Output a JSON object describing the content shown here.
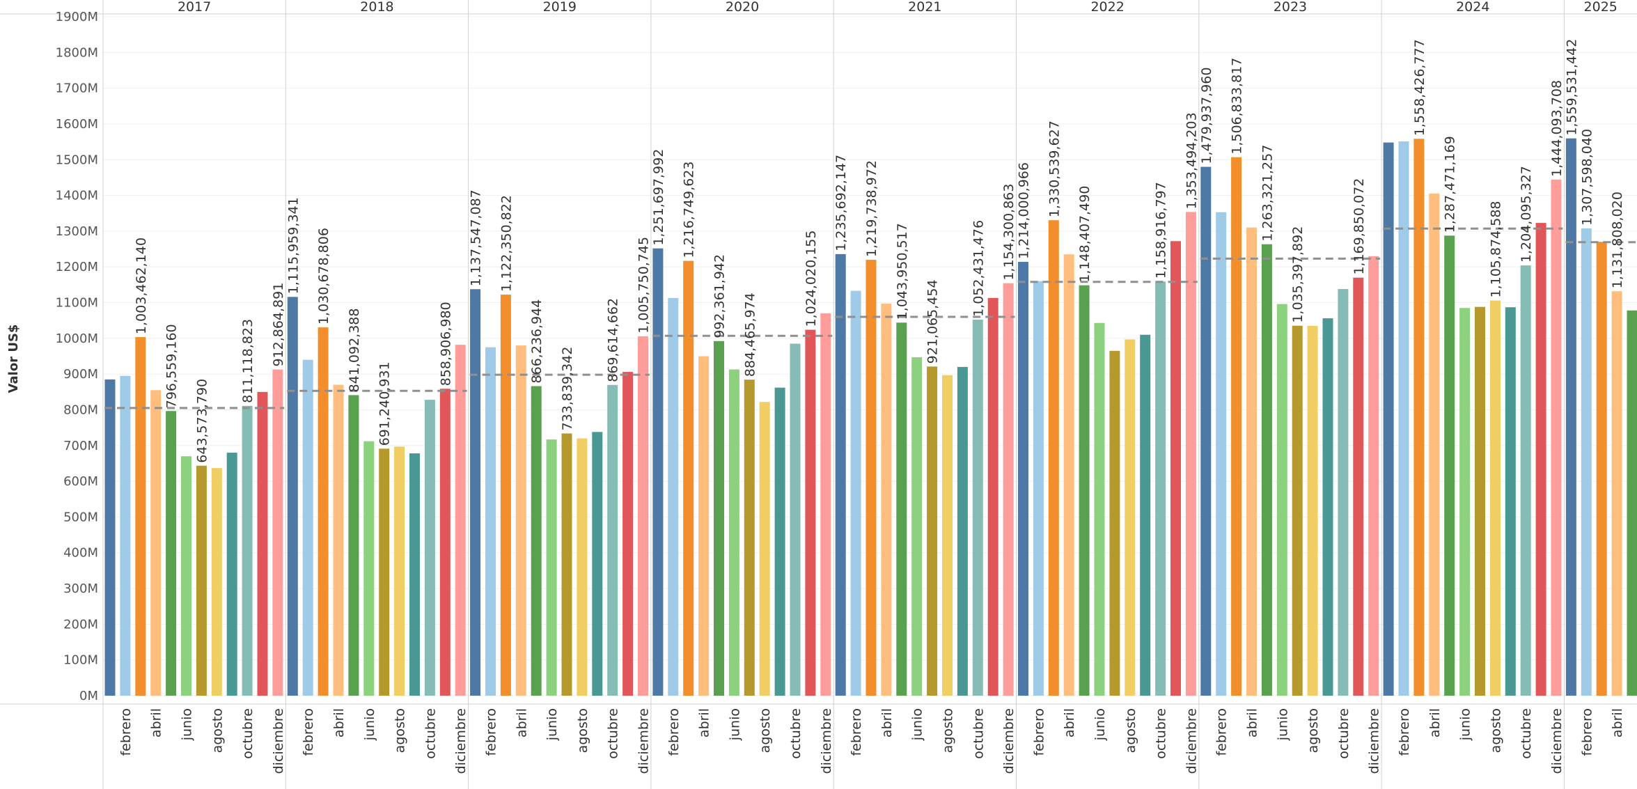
{
  "chart_data": {
    "type": "bar",
    "ylabel": "Valor US$",
    "ylim": [
      0,
      1900000000
    ],
    "yticks": [
      "0M",
      "100M",
      "200M",
      "300M",
      "400M",
      "500M",
      "600M",
      "700M",
      "800M",
      "900M",
      "1000M",
      "1100M",
      "1200M",
      "1300M",
      "1400M",
      "1500M",
      "1600M",
      "1700M",
      "1800M",
      "1900M"
    ],
    "month_labels": [
      "",
      "febrero",
      "",
      "abril",
      "",
      "junio",
      "",
      "agosto",
      "",
      "octubre",
      "",
      "diciembre"
    ],
    "colors": [
      "#4e79a7",
      "#a0cbe8",
      "#f28e2b",
      "#ffbe7d",
      "#59a14f",
      "#8cd17d",
      "#b6992d",
      "#f1ce63",
      "#499894",
      "#86bcb6",
      "#e15759",
      "#ff9d9a"
    ],
    "reference_line": "average per year (dashed)",
    "years": [
      {
        "year": "2017",
        "values": [
          885000000,
          895000000,
          1003462140,
          855000000,
          796559160,
          670000000,
          643573790,
          637000000,
          680000000,
          811118823,
          850000000,
          912864891
        ],
        "labels": [
          "",
          "",
          "1,003,462,140",
          "",
          "796,559,160",
          "",
          "643,573,790",
          "",
          "",
          "811,118,823",
          "",
          "912,864,891"
        ],
        "average": 805000000
      },
      {
        "year": "2018",
        "values": [
          1115959341,
          940000000,
          1030678806,
          870000000,
          841092388,
          712000000,
          691240931,
          697000000,
          678000000,
          828000000,
          858906980,
          982000000
        ],
        "labels": [
          "1,115,959,341",
          "",
          "1,030,678,806",
          "",
          "841,092,388",
          "",
          "691,240,931",
          "",
          "",
          "",
          "858,906,980",
          ""
        ],
        "average": 853000000
      },
      {
        "year": "2019",
        "values": [
          1137547087,
          975000000,
          1122350822,
          980000000,
          866236944,
          717000000,
          733839342,
          720000000,
          738000000,
          869614662,
          906000000,
          1005750745
        ],
        "labels": [
          "1,137,547,087",
          "",
          "1,122,350,822",
          "",
          "866,236,944",
          "",
          "733,839,342",
          "",
          "",
          "869,614,662",
          "",
          "1,005,750,745"
        ],
        "average": 898000000
      },
      {
        "year": "2020",
        "values": [
          1251697992,
          1113000000,
          1216749623,
          950000000,
          992361942,
          913000000,
          884465974,
          822000000,
          862000000,
          985000000,
          1024020155,
          1070000000
        ],
        "labels": [
          "1,251,697,992",
          "",
          "1,216,749,623",
          "",
          "992,361,942",
          "",
          "884,465,974",
          "",
          "",
          "",
          "1,024,020,155",
          ""
        ],
        "average": 1007000000
      },
      {
        "year": "2021",
        "values": [
          1235692147,
          1133000000,
          1219738972,
          1097000000,
          1043950517,
          947000000,
          921065454,
          897000000,
          920000000,
          1052431476,
          1113000000,
          1154300863
        ],
        "labels": [
          "1,235,692,147",
          "",
          "1,219,738,972",
          "",
          "1,043,950,517",
          "",
          "921,065,454",
          "",
          "",
          "1,052,431,476",
          "",
          "1,154,300,863"
        ],
        "average": 1060000000
      },
      {
        "year": "2022",
        "values": [
          1214000966,
          1160000000,
          1330539627,
          1235000000,
          1148407490,
          1043000000,
          965000000,
          997000000,
          1010000000,
          1158916797,
          1272000000,
          1353494203
        ],
        "labels": [
          "1,214,000,966",
          "",
          "1,330,539,627",
          "",
          "1,148,407,490",
          "",
          "",
          "",
          "",
          "1,158,916,797",
          "",
          "1,353,494,203"
        ],
        "average": 1158000000
      },
      {
        "year": "2023",
        "values": [
          1479937960,
          1353000000,
          1506833817,
          1310000000,
          1263321257,
          1096000000,
          1035397892,
          1035000000,
          1056000000,
          1138000000,
          1169850072,
          1230000000
        ],
        "labels": [
          "1,479,937,960",
          "",
          "1,506,833,817",
          "",
          "1,263,321,257",
          "",
          "1,035,397,892",
          "",
          "",
          "",
          "1,169,850,072",
          ""
        ],
        "average": 1223000000
      },
      {
        "year": "2024",
        "values": [
          1548000000,
          1551000000,
          1558426777,
          1405000000,
          1287471169,
          1085000000,
          1088000000,
          1105874588,
          1087000000,
          1204095327,
          1323000000,
          1444093708
        ],
        "labels": [
          "",
          "",
          "1,558,426,777",
          "",
          "1,287,471,169",
          "",
          "",
          "1,105,874,588",
          "",
          "1,204,095,327",
          "",
          "1,444,093,708"
        ],
        "average": 1307000000
      },
      {
        "year": "2025",
        "values": [
          1559531442,
          1307598040,
          1270000000,
          1131808020,
          1078000000
        ],
        "labels": [
          "1,559,531,442",
          "1,307,598,040",
          "",
          "1,131,808,020",
          ""
        ],
        "average": 1269000000
      }
    ]
  }
}
